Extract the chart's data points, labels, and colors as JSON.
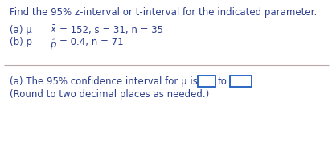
{
  "title": "Find the 95% z-interval or t-interval for the indicated parameter.",
  "line_a_label": "(a) μ",
  "line_a_content": "̅x = 152, s = 31, n = 35",
  "line_b_label": "(b) p",
  "line_b_content": "ṕ = 0.4, n = 71",
  "answer_pre": "(a) The 95% confidence interval for μ is",
  "answer_to": " to",
  "answer_period": ".",
  "answer_line2": "(Round to two decimal places as needed.)",
  "bg_color": "#ffffff",
  "text_color": "#2c3e8c",
  "divider_color": "#b8a8a8",
  "box_color": "#1a5bbf",
  "font_size": 8.5,
  "fig_width": 4.14,
  "fig_height": 1.99,
  "dpi": 100
}
